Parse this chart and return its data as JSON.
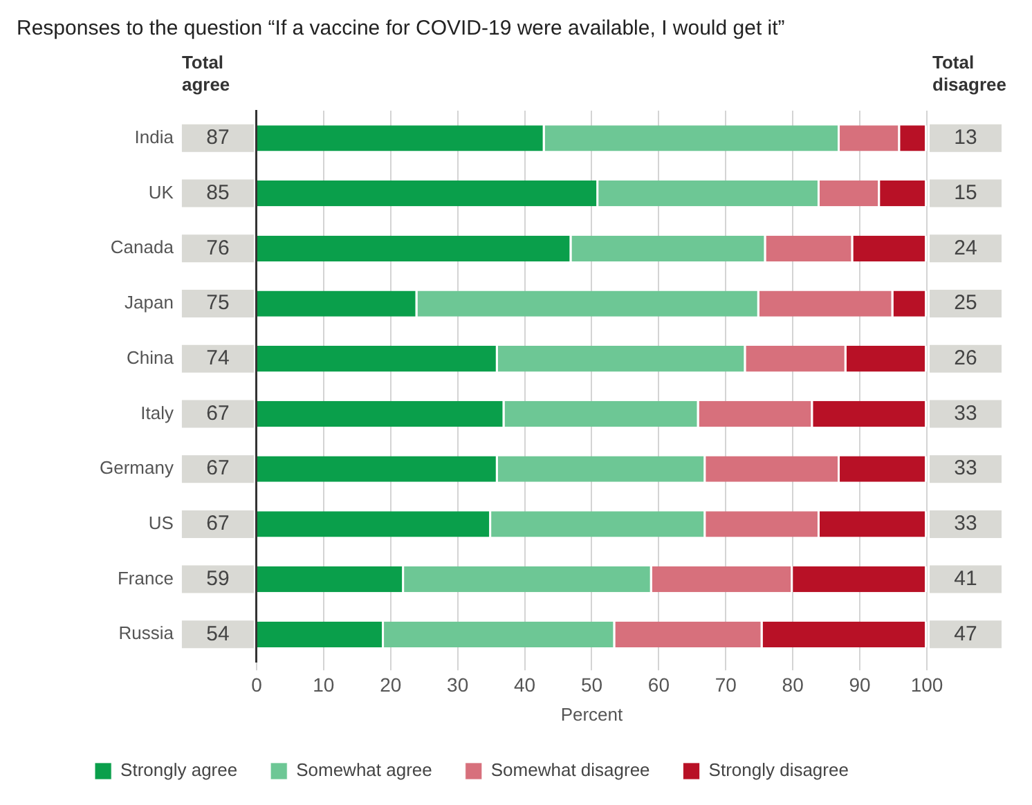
{
  "chart_data": {
    "type": "bar",
    "orientation": "horizontal",
    "stacked": true,
    "title": "Responses to the question “If a vaccine for COVID-19 were available, I would get it”",
    "xlabel": "Percent",
    "categories": [
      "India",
      "UK",
      "Canada",
      "Japan",
      "China",
      "Italy",
      "Germany",
      "US",
      "France",
      "Russia"
    ],
    "series": [
      {
        "name": "Strongly agree",
        "color": "#0a9f4b",
        "values": [
          43,
          51,
          47,
          24,
          36,
          37,
          36,
          35,
          22,
          19
        ]
      },
      {
        "name": "Somewhat agree",
        "color": "#6dc795",
        "values": [
          44,
          33,
          29,
          51,
          37,
          29,
          31,
          32,
          37,
          34.5
        ]
      },
      {
        "name": "Somewhat disagree",
        "color": "#d7707c",
        "values": [
          9,
          9,
          13,
          20,
          15,
          17,
          20,
          17,
          21,
          22
        ]
      },
      {
        "name": "Strongly disagree",
        "color": "#b81126",
        "values": [
          4,
          7,
          11,
          5,
          12,
          17,
          13,
          16,
          20,
          24.5
        ]
      }
    ],
    "xlim": [
      0,
      100
    ],
    "xticks": [
      0,
      10,
      20,
      30,
      40,
      50,
      60,
      70,
      80,
      90,
      100
    ],
    "grid": "x",
    "legend": "bottom",
    "annotations": [
      "Total agree",
      "Total disagree",
      "87",
      "85",
      "76",
      "75",
      "74",
      "67",
      "67",
      "67",
      "59",
      "54",
      "13",
      "15",
      "24",
      "25",
      "26",
      "33",
      "33",
      "33",
      "41",
      "47"
    ]
  }
}
